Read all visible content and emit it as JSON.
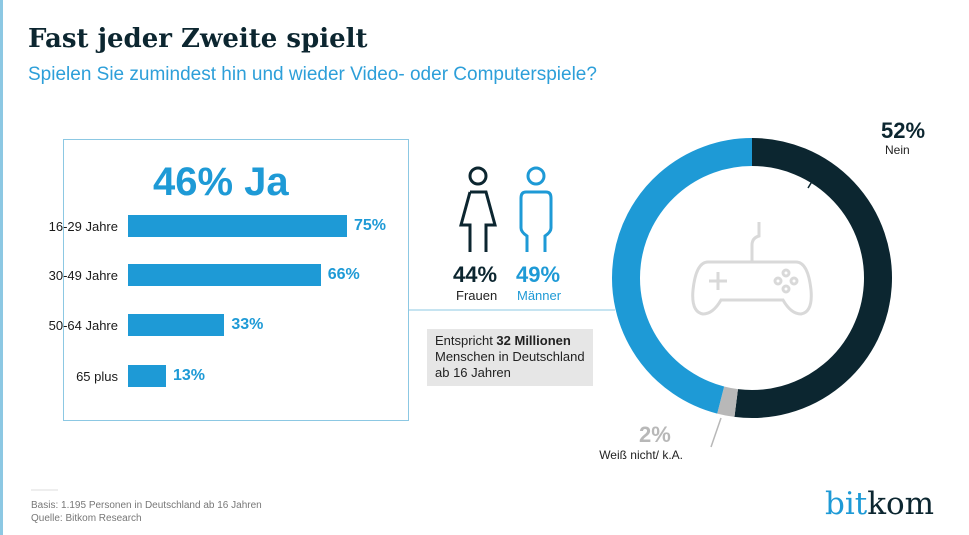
{
  "header": {
    "title": "Fast jeder Zweite spielt",
    "subtitle": "Spielen Sie zumindest hin und wieder Video- oder Computerspiele?"
  },
  "colors": {
    "blue": "#1e9ad6",
    "dark": "#0c2630",
    "grey": "#b8b8b8"
  },
  "chart_data": [
    {
      "type": "bar",
      "orientation": "horizontal",
      "title": "46% Ja",
      "categories": [
        "16-29 Jahre",
        "30-49 Jahre",
        "50-64 Jahre",
        "65 plus"
      ],
      "values": [
        75,
        66,
        33,
        13
      ],
      "value_labels": [
        "75%",
        "66%",
        "33%",
        "13%"
      ]
    },
    {
      "type": "pie",
      "style": "donut",
      "center_icon": "gamepad-icon",
      "slices": [
        {
          "label": "Nein",
          "value": 52,
          "value_label": "52%",
          "color": "#0c2630"
        },
        {
          "label": "Weiß nicht/ k.A.",
          "value": 2,
          "value_label": "2%",
          "color": "#b8b8b8"
        },
        {
          "label": "Ja",
          "value": 46,
          "color": "#1e9ad6"
        }
      ]
    }
  ],
  "gender": {
    "women": {
      "value": "44%",
      "label": "Frauen"
    },
    "men": {
      "value": "49%",
      "label": "Männer"
    }
  },
  "note": {
    "prefix": "Entspricht ",
    "bold": "32 Millionen",
    "rest": "Menschen in Deutschland ab 16 Jahren"
  },
  "footer": {
    "basis": "Basis: 1.195 Personen in Deutschland ab 16 Jahren",
    "source": "Quelle: Bitkom Research",
    "logo_a": "bit",
    "logo_b": "kom"
  }
}
